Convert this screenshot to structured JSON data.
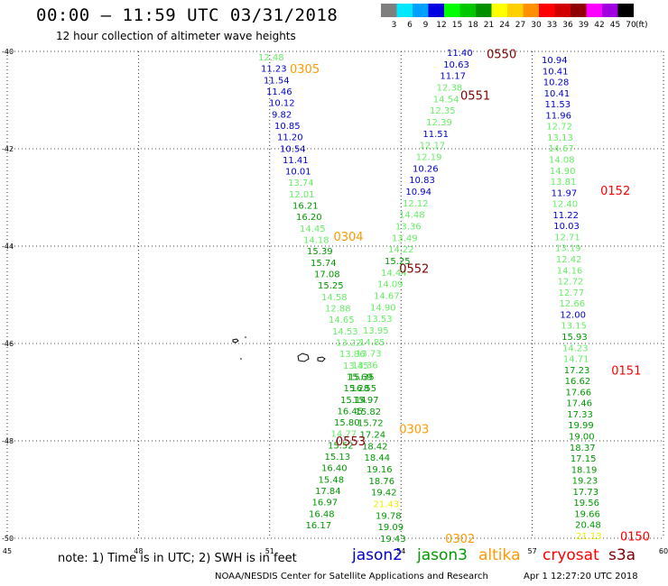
{
  "header": {
    "title": "00:00 – 11:59 UTC 03/31/2018",
    "subtitle": "12 hour collection of altimeter wave heights"
  },
  "legend": {
    "unit": "(ft)",
    "bins": [
      {
        "label": "3",
        "color": "#7f7f7f"
      },
      {
        "label": "6",
        "color": "#00e8ff"
      },
      {
        "label": "9",
        "color": "#00a0ff"
      },
      {
        "label": "12",
        "color": "#0000e0"
      },
      {
        "label": "15",
        "color": "#00ff00"
      },
      {
        "label": "18",
        "color": "#00c800"
      },
      {
        "label": "21",
        "color": "#009000"
      },
      {
        "label": "24",
        "color": "#ffff00"
      },
      {
        "label": "27",
        "color": "#ffd000"
      },
      {
        "label": "30",
        "color": "#ff9000"
      },
      {
        "label": "33",
        "color": "#ff0000"
      },
      {
        "label": "36",
        "color": "#d00000"
      },
      {
        "label": "39",
        "color": "#900000"
      },
      {
        "label": "42",
        "color": "#ff00ff"
      },
      {
        "label": "45",
        "color": "#a000e0"
      },
      {
        "label": "70",
        "color": "#000000"
      }
    ]
  },
  "map": {
    "lon_range": [
      45,
      60
    ],
    "lat_range": [
      -50,
      -40
    ],
    "lon_ticks": [
      "45",
      "48",
      "51",
      "54",
      "57",
      "60"
    ],
    "lat_ticks": [
      "-40",
      "-42",
      "-44",
      "-46",
      "-48",
      "-50"
    ],
    "grid": "dotted"
  },
  "passes": [
    {
      "label": "0305",
      "color": "#ff9900",
      "lon": 51.8,
      "lat": -40.35
    },
    {
      "label": "0304",
      "color": "#ff9900",
      "lon": 52.8,
      "lat": -43.8
    },
    {
      "label": "0303",
      "color": "#ff9900",
      "lon": 54.3,
      "lat": -47.75
    },
    {
      "label": "0302",
      "color": "#ff9900",
      "lon": 55.35,
      "lat": -50.0
    },
    {
      "label": "0550",
      "color": "#800000",
      "lon": 56.3,
      "lat": -40.05
    },
    {
      "label": "0551",
      "color": "#800000",
      "lon": 55.7,
      "lat": -40.9
    },
    {
      "label": "0552",
      "color": "#800000",
      "lon": 54.3,
      "lat": -44.45
    },
    {
      "label": "0553",
      "color": "#800000",
      "lon": 52.85,
      "lat": -48.0
    },
    {
      "label": "0152",
      "color": "#ff0000",
      "lon": 58.9,
      "lat": -42.85
    },
    {
      "label": "0151",
      "color": "#ff0000",
      "lon": 59.15,
      "lat": -46.55
    },
    {
      "label": "0150",
      "color": "#ff0000",
      "lon": 59.35,
      "lat": -49.95
    }
  ],
  "tracks": [
    {
      "name": "track-0305",
      "values": [
        {
          "v": "12.48",
          "c": "#66ee66"
        },
        {
          "v": "11.23",
          "c": "#0000cc"
        },
        {
          "v": "11.54",
          "c": "#0000cc"
        },
        {
          "v": "11.46",
          "c": "#0000cc"
        },
        {
          "v": "10.12",
          "c": "#0000cc"
        },
        {
          "v": "9.82",
          "c": "#0000cc"
        },
        {
          "v": "10.85",
          "c": "#0000cc"
        },
        {
          "v": "11.20",
          "c": "#0000cc"
        },
        {
          "v": "10.54",
          "c": "#0000cc"
        },
        {
          "v": "11.41",
          "c": "#0000cc"
        },
        {
          "v": "10.01",
          "c": "#0000cc"
        },
        {
          "v": "13.74",
          "c": "#66ee66"
        },
        {
          "v": "12.01",
          "c": "#66ee66"
        },
        {
          "v": "16.21",
          "c": "#009900"
        },
        {
          "v": "16.20",
          "c": "#009900"
        },
        {
          "v": "14.45",
          "c": "#66ee66"
        },
        {
          "v": "14.18",
          "c": "#66ee66"
        },
        {
          "v": "15.39",
          "c": "#009900"
        },
        {
          "v": "15.74",
          "c": "#009900"
        },
        {
          "v": "17.08",
          "c": "#009900"
        },
        {
          "v": "15.25",
          "c": "#009900"
        },
        {
          "v": "14.58",
          "c": "#66ee66"
        },
        {
          "v": "12.88",
          "c": "#66ee66"
        },
        {
          "v": "14.65",
          "c": "#66ee66"
        },
        {
          "v": "14.53",
          "c": "#66ee66"
        },
        {
          "v": "13.22",
          "c": "#66ee66"
        },
        {
          "v": "13.86",
          "c": "#66ee66"
        },
        {
          "v": "13.45",
          "c": "#66ee66"
        },
        {
          "v": "15.69",
          "c": "#009900"
        },
        {
          "v": "15.28",
          "c": "#009900"
        },
        {
          "v": "15.14",
          "c": "#009900"
        },
        {
          "v": "16.45",
          "c": "#009900"
        },
        {
          "v": "15.80",
          "c": "#009900"
        },
        {
          "v": "14.77",
          "c": "#66ee66"
        },
        {
          "v": "15.52",
          "c": "#009900"
        },
        {
          "v": "15.13",
          "c": "#009900"
        },
        {
          "v": "16.40",
          "c": "#009900"
        },
        {
          "v": "15.48",
          "c": "#009900"
        },
        {
          "v": "17.84",
          "c": "#009900"
        },
        {
          "v": "16.97",
          "c": "#009900"
        },
        {
          "v": "16.48",
          "c": "#009900"
        },
        {
          "v": "16.17",
          "c": "#009900"
        }
      ]
    },
    {
      "name": "track-0551",
      "values": [
        {
          "v": "11.40",
          "c": "#0000cc"
        },
        {
          "v": "10.63",
          "c": "#0000cc"
        },
        {
          "v": "11.17",
          "c": "#0000cc"
        },
        {
          "v": "12.38",
          "c": "#66ee66"
        },
        {
          "v": "14.54",
          "c": "#66ee66"
        },
        {
          "v": "12.35",
          "c": "#66ee66"
        },
        {
          "v": "12.39",
          "c": "#66ee66"
        },
        {
          "v": "11.51",
          "c": "#0000cc"
        },
        {
          "v": "12.17",
          "c": "#66ee66"
        },
        {
          "v": "12.19",
          "c": "#66ee66"
        },
        {
          "v": "10.26",
          "c": "#0000cc"
        },
        {
          "v": "10.83",
          "c": "#0000cc"
        },
        {
          "v": "10.94",
          "c": "#0000cc"
        },
        {
          "v": "12.12",
          "c": "#66ee66"
        },
        {
          "v": "14.48",
          "c": "#66ee66"
        },
        {
          "v": "13.36",
          "c": "#66ee66"
        },
        {
          "v": "13.49",
          "c": "#66ee66"
        },
        {
          "v": "14.22",
          "c": "#66ee66"
        },
        {
          "v": "15.25",
          "c": "#009900"
        },
        {
          "v": "14.44",
          "c": "#66ee66"
        },
        {
          "v": "14.09",
          "c": "#66ee66"
        },
        {
          "v": "14.67",
          "c": "#66ee66"
        },
        {
          "v": "14.90",
          "c": "#66ee66"
        },
        {
          "v": "13.53",
          "c": "#66ee66"
        },
        {
          "v": "13.95",
          "c": "#66ee66"
        },
        {
          "v": "14.85",
          "c": "#66ee66"
        },
        {
          "v": "13.73",
          "c": "#66ee66"
        },
        {
          "v": "13.36",
          "c": "#66ee66"
        },
        {
          "v": "15.35",
          "c": "#009900"
        },
        {
          "v": "16.55",
          "c": "#009900"
        },
        {
          "v": "15.97",
          "c": "#009900"
        },
        {
          "v": "15.82",
          "c": "#009900"
        },
        {
          "v": "15.72",
          "c": "#009900"
        },
        {
          "v": "17.24",
          "c": "#009900"
        },
        {
          "v": "18.42",
          "c": "#009900"
        },
        {
          "v": "18.44",
          "c": "#009900"
        },
        {
          "v": "19.16",
          "c": "#009900"
        },
        {
          "v": "18.76",
          "c": "#009900"
        },
        {
          "v": "19.42",
          "c": "#009900"
        },
        {
          "v": "21.43",
          "c": "#eeee00"
        },
        {
          "v": "19.78",
          "c": "#009900"
        },
        {
          "v": "19.09",
          "c": "#009900"
        },
        {
          "v": "19.43",
          "c": "#009900"
        }
      ]
    },
    {
      "name": "track-0152",
      "values": [
        {
          "v": "10.94",
          "c": "#0000cc"
        },
        {
          "v": "10.41",
          "c": "#0000cc"
        },
        {
          "v": "10.28",
          "c": "#0000cc"
        },
        {
          "v": "10.41",
          "c": "#0000cc"
        },
        {
          "v": "11.53",
          "c": "#0000cc"
        },
        {
          "v": "11.96",
          "c": "#0000cc"
        },
        {
          "v": "12.72",
          "c": "#66ee66"
        },
        {
          "v": "13.13",
          "c": "#66ee66"
        },
        {
          "v": "14.67",
          "c": "#66ee66"
        },
        {
          "v": "14.08",
          "c": "#66ee66"
        },
        {
          "v": "14.90",
          "c": "#66ee66"
        },
        {
          "v": "13.81",
          "c": "#66ee66"
        },
        {
          "v": "11.97",
          "c": "#0000cc"
        },
        {
          "v": "12.40",
          "c": "#66ee66"
        },
        {
          "v": "11.22",
          "c": "#0000cc"
        },
        {
          "v": "10.03",
          "c": "#0000cc"
        },
        {
          "v": "12.71",
          "c": "#66ee66"
        },
        {
          "v": "13.19",
          "c": "#66ee66"
        },
        {
          "v": "12.42",
          "c": "#66ee66"
        },
        {
          "v": "14.16",
          "c": "#66ee66"
        },
        {
          "v": "12.72",
          "c": "#66ee66"
        },
        {
          "v": "12.77",
          "c": "#66ee66"
        },
        {
          "v": "12.66",
          "c": "#66ee66"
        },
        {
          "v": "12.00",
          "c": "#0000cc"
        },
        {
          "v": "13.15",
          "c": "#66ee66"
        },
        {
          "v": "15.93",
          "c": "#009900"
        },
        {
          "v": "14.23",
          "c": "#66ee66"
        },
        {
          "v": "14.71",
          "c": "#66ee66"
        },
        {
          "v": "17.23",
          "c": "#009900"
        },
        {
          "v": "16.62",
          "c": "#009900"
        },
        {
          "v": "17.66",
          "c": "#009900"
        },
        {
          "v": "17.46",
          "c": "#009900"
        },
        {
          "v": "17.33",
          "c": "#009900"
        },
        {
          "v": "19.99",
          "c": "#009900"
        },
        {
          "v": "19.00",
          "c": "#009900"
        },
        {
          "v": "18.37",
          "c": "#009900"
        },
        {
          "v": "17.15",
          "c": "#009900"
        },
        {
          "v": "18.19",
          "c": "#009900"
        },
        {
          "v": "19.23",
          "c": "#009900"
        },
        {
          "v": "17.73",
          "c": "#009900"
        },
        {
          "v": "19.56",
          "c": "#009900"
        },
        {
          "v": "19.66",
          "c": "#009900"
        },
        {
          "v": "20.48",
          "c": "#009900"
        },
        {
          "v": "21.13",
          "c": "#eeee00"
        }
      ]
    }
  ],
  "footer": {
    "note": "note:  1) Time is in UTC;  2) SWH is in feet",
    "satellites": [
      {
        "name": "jason2",
        "color": "#0000cc"
      },
      {
        "name": "jason3",
        "color": "#009900"
      },
      {
        "name": "altika",
        "color": "#ff9900"
      },
      {
        "name": "cryosat",
        "color": "#ff0000"
      },
      {
        "name": "s3a",
        "color": "#800000"
      }
    ],
    "credit": "NOAA/NESDIS Center for Satellite Applications and Research",
    "timestamp": "Apr  1 12:27:20 UTC 2018"
  }
}
